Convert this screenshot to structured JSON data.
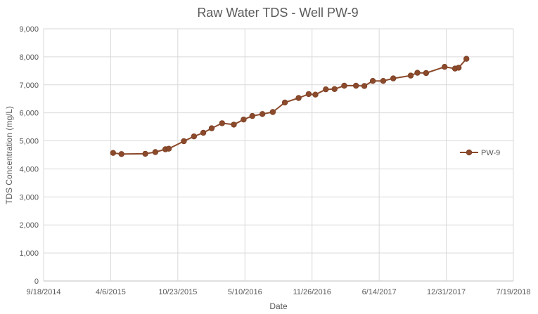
{
  "chart_data": {
    "type": "line",
    "title": "Raw Water TDS - Well PW-9",
    "xlabel": "Date",
    "ylabel": "TDS Concentration (mg/L)",
    "ylim": [
      0,
      9000
    ],
    "y_ticks": [
      0,
      1000,
      2000,
      3000,
      4000,
      5000,
      6000,
      7000,
      8000,
      9000
    ],
    "y_tick_labels": [
      "0",
      "1,000",
      "2,000",
      "3,000",
      "4,000",
      "5,000",
      "6,000",
      "7,000",
      "8,000",
      "9,000"
    ],
    "x_tick_labels": [
      "9/18/2014",
      "4/6/2015",
      "10/23/2015",
      "5/10/2016",
      "11/26/2016",
      "6/14/2017",
      "12/31/2017",
      "7/19/2018"
    ],
    "gridlines": true,
    "legend_position": "right",
    "series": [
      {
        "name": "PW-9",
        "color": "#8B4A2B",
        "points": [
          {
            "date": "2015-04-13",
            "value": 4570
          },
          {
            "date": "2015-05-08",
            "value": 4530
          },
          {
            "date": "2015-07-18",
            "value": 4540
          },
          {
            "date": "2015-08-17",
            "value": 4600
          },
          {
            "date": "2015-09-16",
            "value": 4700
          },
          {
            "date": "2015-09-26",
            "value": 4720
          },
          {
            "date": "2015-11-10",
            "value": 4990
          },
          {
            "date": "2015-12-10",
            "value": 5160
          },
          {
            "date": "2016-01-07",
            "value": 5290
          },
          {
            "date": "2016-02-01",
            "value": 5450
          },
          {
            "date": "2016-03-03",
            "value": 5630
          },
          {
            "date": "2016-04-07",
            "value": 5580
          },
          {
            "date": "2016-05-06",
            "value": 5760
          },
          {
            "date": "2016-06-01",
            "value": 5890
          },
          {
            "date": "2016-07-01",
            "value": 5960
          },
          {
            "date": "2016-08-01",
            "value": 6030
          },
          {
            "date": "2016-09-06",
            "value": 6370
          },
          {
            "date": "2016-10-17",
            "value": 6530
          },
          {
            "date": "2016-11-16",
            "value": 6670
          },
          {
            "date": "2016-12-06",
            "value": 6650
          },
          {
            "date": "2017-01-06",
            "value": 6840
          },
          {
            "date": "2017-02-01",
            "value": 6850
          },
          {
            "date": "2017-03-02",
            "value": 6970
          },
          {
            "date": "2017-04-06",
            "value": 6970
          },
          {
            "date": "2017-05-01",
            "value": 6960
          },
          {
            "date": "2017-05-26",
            "value": 7140
          },
          {
            "date": "2017-06-26",
            "value": 7140
          },
          {
            "date": "2017-07-26",
            "value": 7230
          },
          {
            "date": "2017-09-16",
            "value": 7330
          },
          {
            "date": "2017-10-06",
            "value": 7430
          },
          {
            "date": "2017-11-01",
            "value": 7420
          },
          {
            "date": "2017-12-26",
            "value": 7640
          },
          {
            "date": "2018-01-26",
            "value": 7580
          },
          {
            "date": "2018-02-06",
            "value": 7610
          },
          {
            "date": "2018-03-01",
            "value": 7930
          }
        ]
      }
    ]
  }
}
